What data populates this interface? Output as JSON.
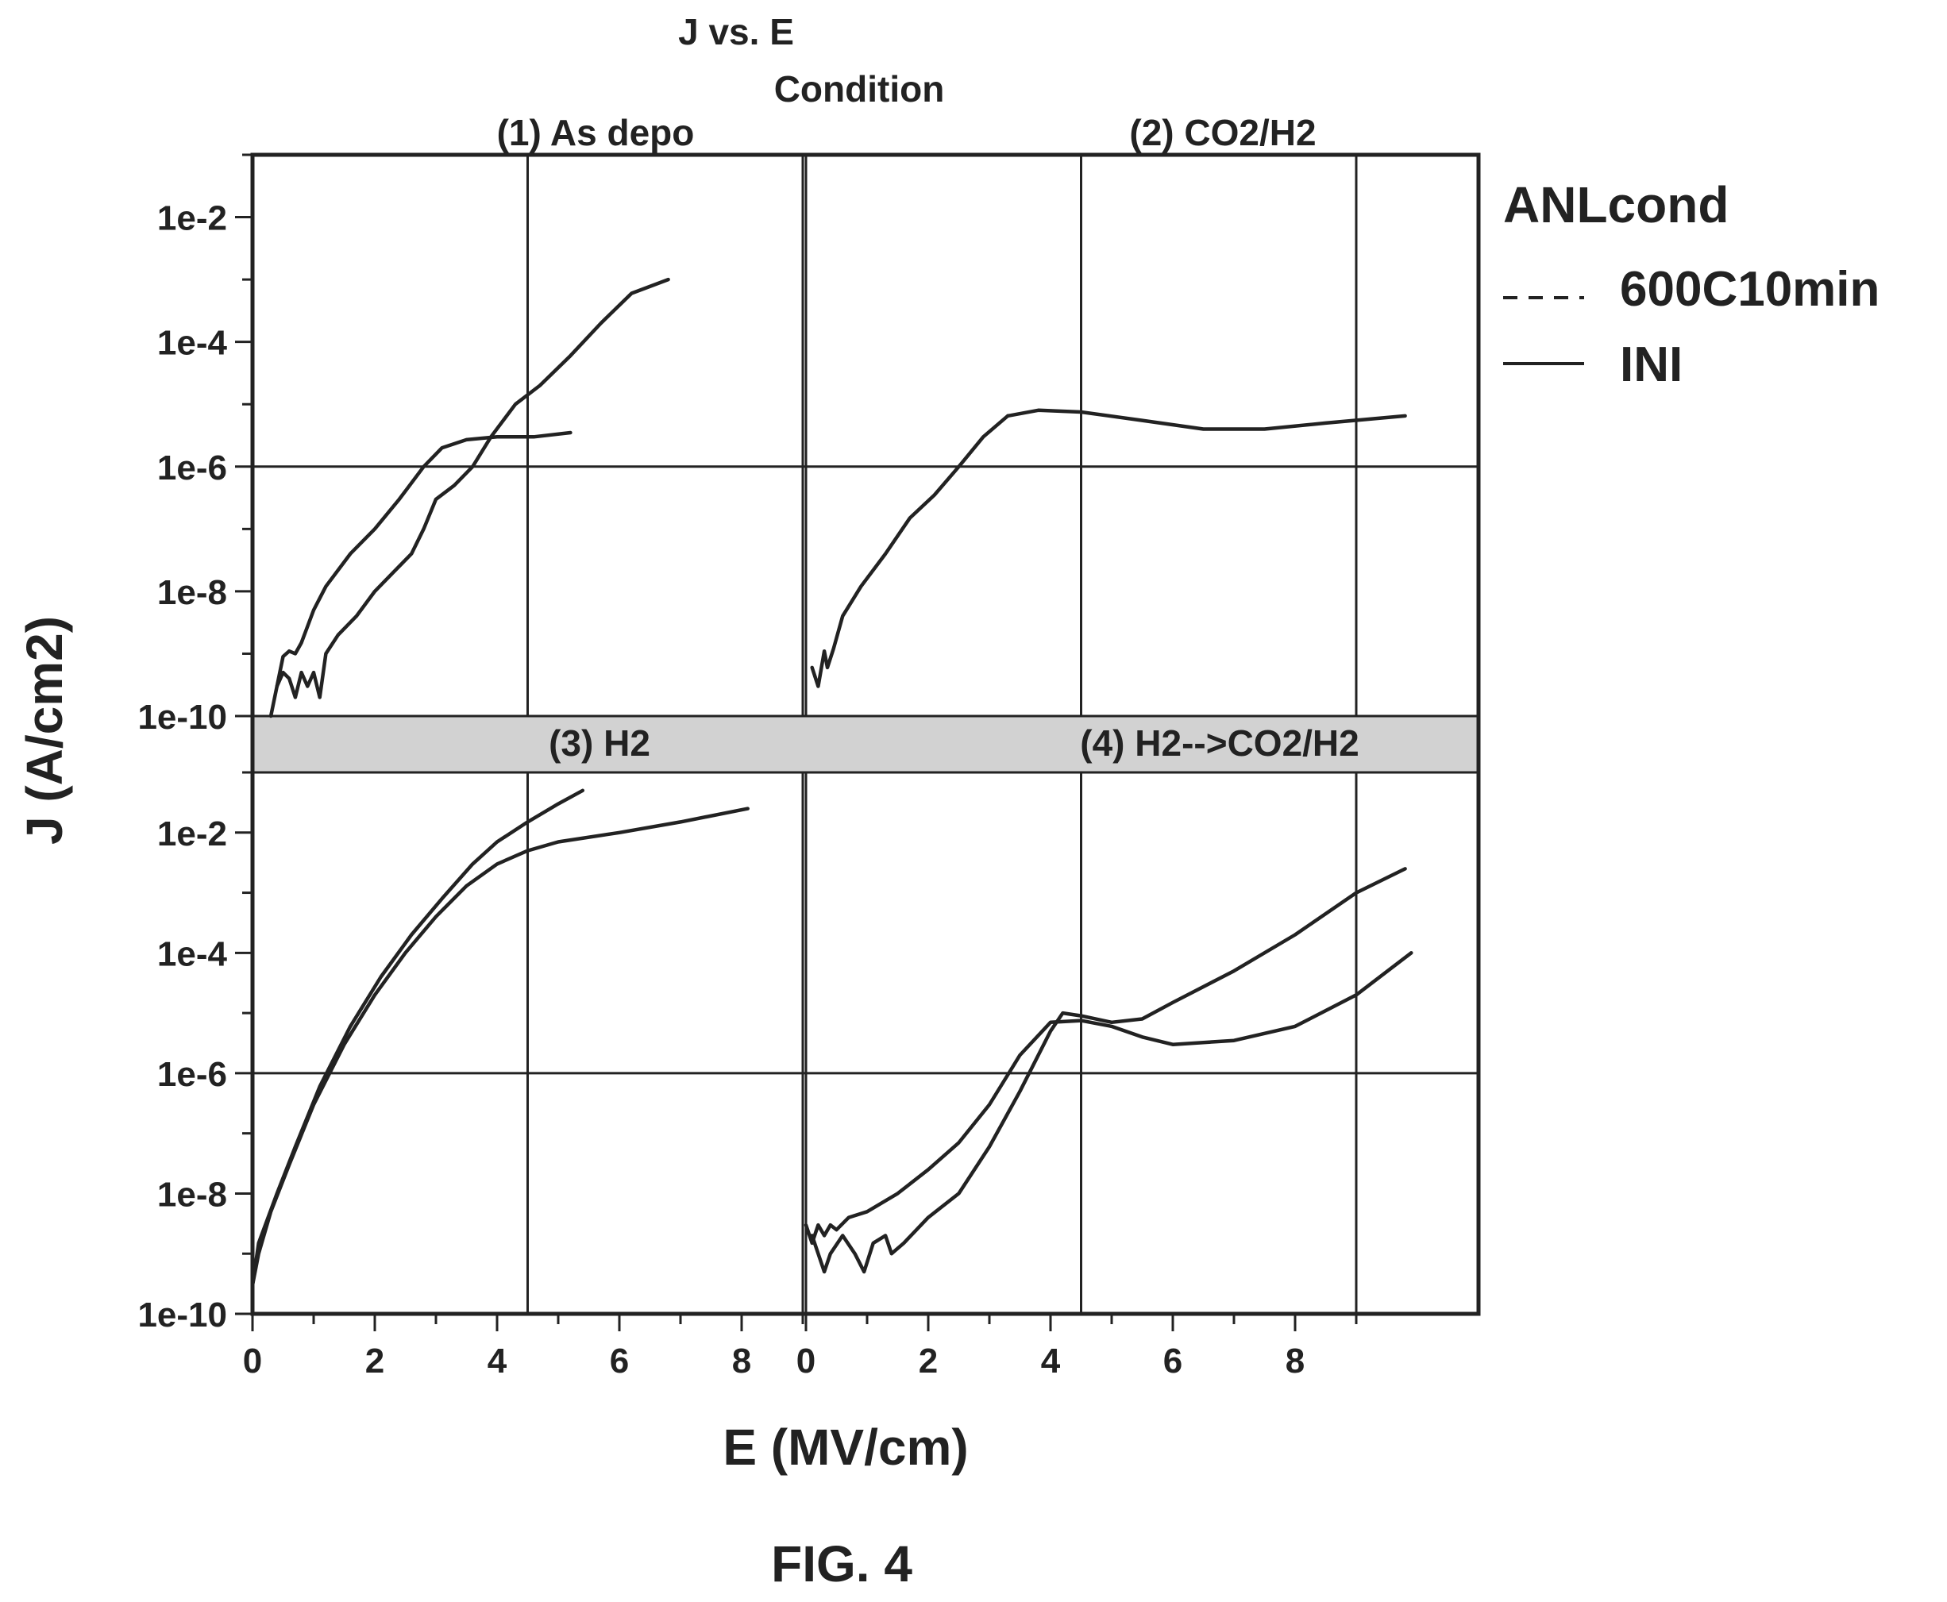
{
  "title": "J vs. E",
  "facet_header": "Condition",
  "figure_label": "FIG. 4",
  "chart_data": {
    "type": "line",
    "title": "J vs. E",
    "xlabel": "E (MV/cm)",
    "ylabel": "J (A/cm2)",
    "y_scale": "log",
    "ylim": [
      1e-10,
      0.1
    ],
    "xlim": [
      0,
      9
    ],
    "x_ticks": [
      0,
      2,
      4,
      6,
      8
    ],
    "x_tick_labels": [
      "0",
      "2",
      "4",
      "6",
      "8"
    ],
    "y_ticks": [
      1e-10,
      1e-08,
      1e-06,
      0.0001,
      0.01
    ],
    "y_tick_labels": [
      "1e-10",
      "1e-8",
      "1e-6",
      "1e-4",
      "1e-2"
    ],
    "grid": true,
    "grid_x_values": [
      4.5,
      9
    ],
    "grid_y_values": [
      1e-06
    ],
    "legend": {
      "title": "ANLcond",
      "position": "right",
      "entries": [
        {
          "label": "600C10min",
          "style": "dashed"
        },
        {
          "label": "INI",
          "style": "solid"
        }
      ]
    },
    "panels": [
      {
        "label": "(1) As depo",
        "series": [
          {
            "points": [
              [
                0.3,
                1e-10
              ],
              [
                0.4,
                3e-10
              ],
              [
                0.5,
                9e-10
              ],
              [
                0.6,
                1.1e-09
              ],
              [
                0.7,
                1e-09
              ],
              [
                0.8,
                1.5e-09
              ],
              [
                1.0,
                5e-09
              ],
              [
                1.2,
                1.2e-08
              ],
              [
                1.6,
                4e-08
              ],
              [
                2.0,
                1e-07
              ],
              [
                2.4,
                3e-07
              ],
              [
                2.8,
                1e-06
              ],
              [
                3.1,
                2e-06
              ],
              [
                3.5,
                2.7e-06
              ],
              [
                4.0,
                3e-06
              ],
              [
                4.6,
                3e-06
              ],
              [
                5.2,
                3.5e-06
              ]
            ]
          },
          {
            "points": [
              [
                0.4,
                3e-10
              ],
              [
                0.5,
                5e-10
              ],
              [
                0.6,
                4e-10
              ],
              [
                0.7,
                2e-10
              ],
              [
                0.8,
                5e-10
              ],
              [
                0.9,
                3e-10
              ],
              [
                1.0,
                5e-10
              ],
              [
                1.1,
                2e-10
              ],
              [
                1.2,
                1e-09
              ],
              [
                1.4,
                2e-09
              ],
              [
                1.7,
                4e-09
              ],
              [
                2.0,
                1e-08
              ],
              [
                2.3,
                2e-08
              ],
              [
                2.6,
                4e-08
              ],
              [
                2.8,
                1e-07
              ],
              [
                3.0,
                3e-07
              ],
              [
                3.3,
                5e-07
              ],
              [
                3.6,
                1e-06
              ],
              [
                3.9,
                3e-06
              ],
              [
                4.3,
                1e-05
              ],
              [
                4.7,
                2e-05
              ],
              [
                5.2,
                6e-05
              ],
              [
                5.7,
                0.0002
              ],
              [
                6.2,
                0.0006
              ],
              [
                6.8,
                0.001
              ]
            ]
          }
        ]
      },
      {
        "label": "(2) CO2/H2",
        "series": [
          {
            "points": [
              [
                0.1,
                6e-10
              ],
              [
                0.2,
                3e-10
              ],
              [
                0.3,
                1.1e-09
              ],
              [
                0.35,
                6e-10
              ],
              [
                0.45,
                1.2e-09
              ],
              [
                0.6,
                4e-09
              ],
              [
                0.9,
                1.2e-08
              ],
              [
                1.3,
                4e-08
              ],
              [
                1.7,
                1.5e-07
              ],
              [
                2.1,
                3.5e-07
              ],
              [
                2.5,
                1e-06
              ],
              [
                2.9,
                3e-06
              ],
              [
                3.3,
                6.5e-06
              ],
              [
                3.8,
                8e-06
              ],
              [
                4.5,
                7.5e-06
              ],
              [
                5.5,
                5.5e-06
              ],
              [
                6.5,
                4e-06
              ],
              [
                7.5,
                4e-06
              ],
              [
                8.5,
                5e-06
              ],
              [
                9.8,
                6.5e-06
              ]
            ]
          }
        ]
      },
      {
        "label": "(3) H2",
        "series": [
          {
            "points": [
              [
                0.0,
                3e-10
              ],
              [
                0.1,
                1e-09
              ],
              [
                0.3,
                5e-09
              ],
              [
                0.6,
                3e-08
              ],
              [
                1.0,
                3e-07
              ],
              [
                1.5,
                3e-06
              ],
              [
                2.0,
                2e-05
              ],
              [
                2.5,
                0.0001
              ],
              [
                3.0,
                0.0004
              ],
              [
                3.5,
                0.0013
              ],
              [
                4.0,
                0.003
              ],
              [
                4.5,
                0.005
              ],
              [
                5.0,
                0.007
              ],
              [
                6.0,
                0.01
              ],
              [
                7.0,
                0.015
              ],
              [
                8.1,
                0.025
              ]
            ]
          },
          {
            "points": [
              [
                0.0,
                3e-10
              ],
              [
                0.1,
                1.5e-09
              ],
              [
                0.4,
                1e-08
              ],
              [
                0.7,
                6e-08
              ],
              [
                1.1,
                6e-07
              ],
              [
                1.6,
                6e-06
              ],
              [
                2.1,
                4e-05
              ],
              [
                2.6,
                0.0002
              ],
              [
                3.1,
                0.0008
              ],
              [
                3.6,
                0.003
              ],
              [
                4.0,
                0.007
              ],
              [
                4.5,
                0.015
              ],
              [
                5.0,
                0.03
              ],
              [
                5.4,
                0.05
              ]
            ]
          }
        ]
      },
      {
        "label": "(4) H2-->CO2/H2",
        "series": [
          {
            "points": [
              [
                0.0,
                3e-09
              ],
              [
                0.1,
                1.5e-09
              ],
              [
                0.2,
                3e-09
              ],
              [
                0.3,
                2e-09
              ],
              [
                0.4,
                3e-09
              ],
              [
                0.5,
                2.5e-09
              ],
              [
                0.7,
                4e-09
              ],
              [
                1.0,
                5e-09
              ],
              [
                1.5,
                1e-08
              ],
              [
                2.0,
                2.5e-08
              ],
              [
                2.5,
                7e-08
              ],
              [
                3.0,
                3e-07
              ],
              [
                3.5,
                2e-06
              ],
              [
                4.0,
                7e-06
              ],
              [
                4.5,
                7.5e-06
              ],
              [
                5.0,
                6e-06
              ],
              [
                5.5,
                4e-06
              ],
              [
                6.0,
                3e-06
              ],
              [
                7.0,
                3.5e-06
              ],
              [
                8.0,
                6e-06
              ],
              [
                9.0,
                2e-05
              ],
              [
                9.9,
                0.0001
              ]
            ]
          },
          {
            "points": [
              [
                0.1,
                2e-09
              ],
              [
                0.2,
                1e-09
              ],
              [
                0.3,
                5e-10
              ],
              [
                0.4,
                1e-09
              ],
              [
                0.6,
                2e-09
              ],
              [
                0.8,
                1e-09
              ],
              [
                0.95,
                5e-10
              ],
              [
                1.1,
                1.5e-09
              ],
              [
                1.3,
                2e-09
              ],
              [
                1.4,
                1e-09
              ],
              [
                1.6,
                1.5e-09
              ],
              [
                2.0,
                4e-09
              ],
              [
                2.5,
                1e-08
              ],
              [
                3.0,
                6e-08
              ],
              [
                3.5,
                5e-07
              ],
              [
                4.0,
                5e-06
              ],
              [
                4.2,
                1e-05
              ],
              [
                4.5,
                9e-06
              ],
              [
                5.0,
                7e-06
              ],
              [
                5.5,
                8e-06
              ],
              [
                6.0,
                1.5e-05
              ],
              [
                7.0,
                5e-05
              ],
              [
                8.0,
                0.0002
              ],
              [
                9.0,
                0.001
              ],
              [
                9.8,
                0.0025
              ]
            ]
          }
        ]
      }
    ]
  }
}
